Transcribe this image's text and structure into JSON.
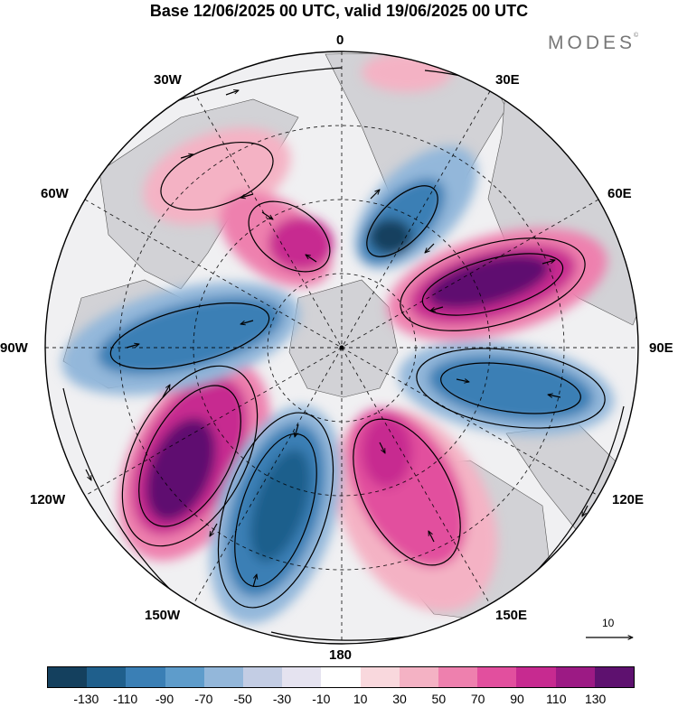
{
  "title": "Base 12/06/2025 00 UTC, valid 19/06/2025 00 UTC",
  "brand": "MODES",
  "brand_mark": "©",
  "longitude_labels": {
    "lon_0": "0",
    "lon_30e": "30E",
    "lon_60e": "60E",
    "lon_90e": "90E",
    "lon_120e": "120E",
    "lon_150e": "150E",
    "lon_180": "180",
    "lon_150w": "150W",
    "lon_120w": "120W",
    "lon_90w": "90W",
    "lon_60w": "60W",
    "lon_30w": "30W"
  },
  "vector_reference": {
    "label": "10"
  },
  "colorbar": {
    "colors": [
      "#14405e",
      "#1f5f8c",
      "#3a7fb5",
      "#5e9ccb",
      "#93b7da",
      "#c3cde4",
      "#e5e3f0",
      "#ffffff",
      "#f9d8dd",
      "#f4b2c4",
      "#ee80ae",
      "#e24f9e",
      "#c72a90",
      "#9c1a84",
      "#5e116f"
    ],
    "tick_labels": [
      "-130",
      "-110",
      "-90",
      "-70",
      "-50",
      "-30",
      "-10",
      "10",
      "30",
      "50",
      "70",
      "90",
      "110",
      "130"
    ]
  },
  "map_colors": {
    "ocean": "#f0f0f2",
    "land": "#d2d2d6",
    "border": "#000000"
  }
}
